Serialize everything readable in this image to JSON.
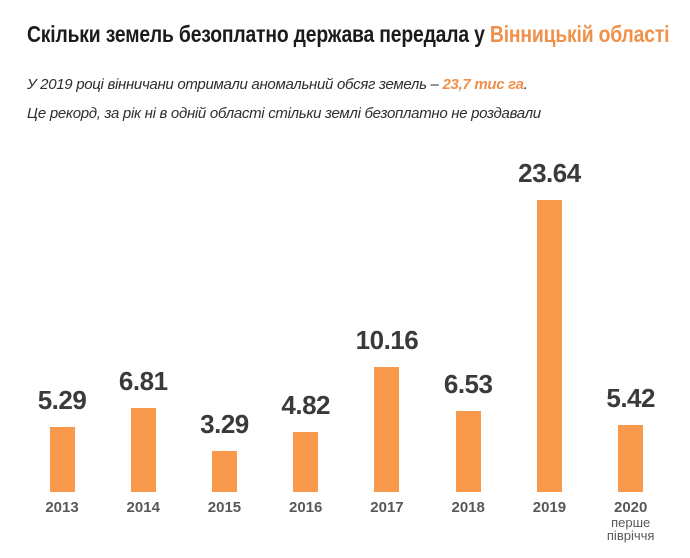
{
  "title": {
    "prefix": "Скільки земель безоплатно держава передала у ",
    "highlight": "Вінницькій області"
  },
  "subtitle": {
    "line1_prefix": "У 2019 році вінничани отримали аномальний обсяг земель – ",
    "line1_highlight": "23,7 тис га",
    "line1_suffix": ".",
    "line2": "Це рекорд, за рік ні в одній області стільки землі безоплатно не роздавали"
  },
  "colors": {
    "accent_text": "#f0914b",
    "bar": "#f9994b",
    "title_text": "#1b1b1b",
    "subtitle_text": "#2e2e30",
    "value_label": "#3a3a3c",
    "axis_label": "#57585a"
  },
  "chart_data": {
    "type": "bar",
    "title": "Скільки земель безоплатно держава передала у Вінницькій області",
    "categories": [
      "2013",
      "2014",
      "2015",
      "2016",
      "2017",
      "2018",
      "2019",
      "2020"
    ],
    "values": [
      5.29,
      6.81,
      3.29,
      4.82,
      10.16,
      6.53,
      23.64,
      5.42
    ],
    "value_labels": [
      "5.29",
      "6.81",
      "3.29",
      "4.82",
      "10.16",
      "6.53",
      "23.64",
      "5.42"
    ],
    "category_sublabels": [
      "",
      "",
      "",
      "",
      "",
      "",
      "",
      "перше півріччя"
    ],
    "unit": "тис га",
    "xlabel": "",
    "ylabel": "",
    "ylim": [
      0,
      24
    ],
    "grid": false,
    "legend": false,
    "bar_color": "#f9994b",
    "value_labels_shown": true
  }
}
